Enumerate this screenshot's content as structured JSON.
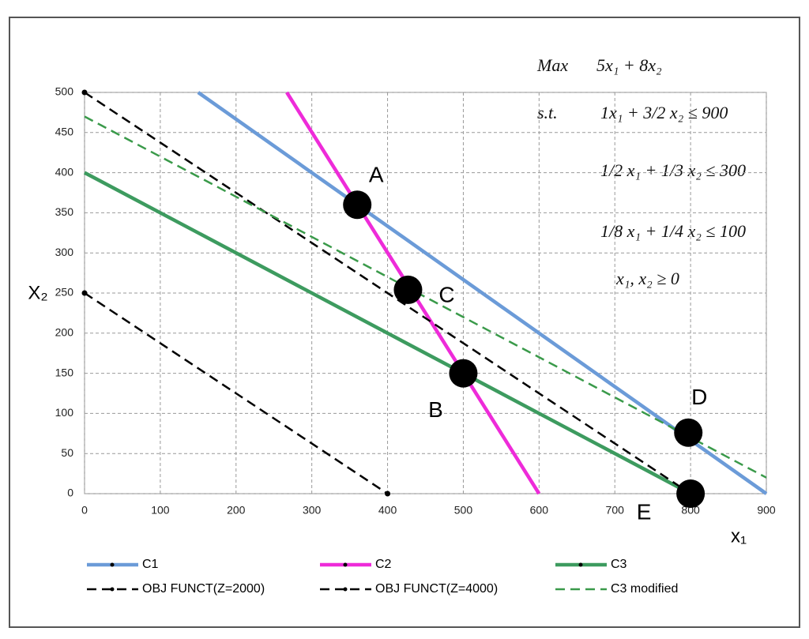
{
  "chart_data": {
    "type": "line",
    "x_label": "x₁",
    "y_label": "X₂",
    "xlim": [
      0,
      900
    ],
    "ylim": [
      0,
      500
    ],
    "xticks": [
      0,
      100,
      200,
      300,
      400,
      500,
      600,
      700,
      800,
      900
    ],
    "yticks": [
      0,
      50,
      100,
      150,
      200,
      250,
      300,
      350,
      400,
      450,
      500
    ],
    "grid": true,
    "legend": "bottom",
    "series": [
      {
        "name": "C1",
        "color": "#6b9bd8",
        "style": "solid",
        "x": [
          150,
          900
        ],
        "values": [
          500,
          0
        ]
      },
      {
        "name": "C2",
        "color": "#ee2bd9",
        "style": "solid",
        "x": [
          267,
          600
        ],
        "values": [
          500,
          0
        ]
      },
      {
        "name": "C3",
        "color": "#3d9b5f",
        "style": "solid",
        "x": [
          0,
          800
        ],
        "values": [
          400,
          0
        ]
      },
      {
        "name": "OBJ FUNCT(Z=2000)",
        "color": "#000000",
        "style": "dashed",
        "markers": true,
        "x": [
          0,
          400
        ],
        "values": [
          250,
          0
        ]
      },
      {
        "name": "OBJ FUNCT(Z=4000)",
        "color": "#000000",
        "style": "dashed",
        "markers": true,
        "x": [
          0,
          800
        ],
        "values": [
          500,
          0
        ]
      },
      {
        "name": "C3 modified",
        "color": "#3a9a4a",
        "style": "dashed",
        "x": [
          0,
          900
        ],
        "values": [
          470,
          20
        ]
      }
    ],
    "points": {
      "color": "#000000",
      "labels": [
        "A",
        "C",
        "B",
        "D",
        "E"
      ],
      "x": [
        360,
        427,
        500,
        797,
        800
      ],
      "values": [
        360,
        254,
        150,
        76,
        0
      ]
    },
    "model": {
      "objective_label": "Max",
      "objective": "5x₁ + 8x₂",
      "constraints_label": "s.t.",
      "constraints": [
        "1x₁ + 3/2 x₂ ≤ 900",
        "1/2 x₁ + 1/3 x₂ ≤ 300",
        "1/8 x₁ + 1/4 x₂ ≤ 100",
        "x₁, x₂ ≥ 0"
      ]
    }
  }
}
